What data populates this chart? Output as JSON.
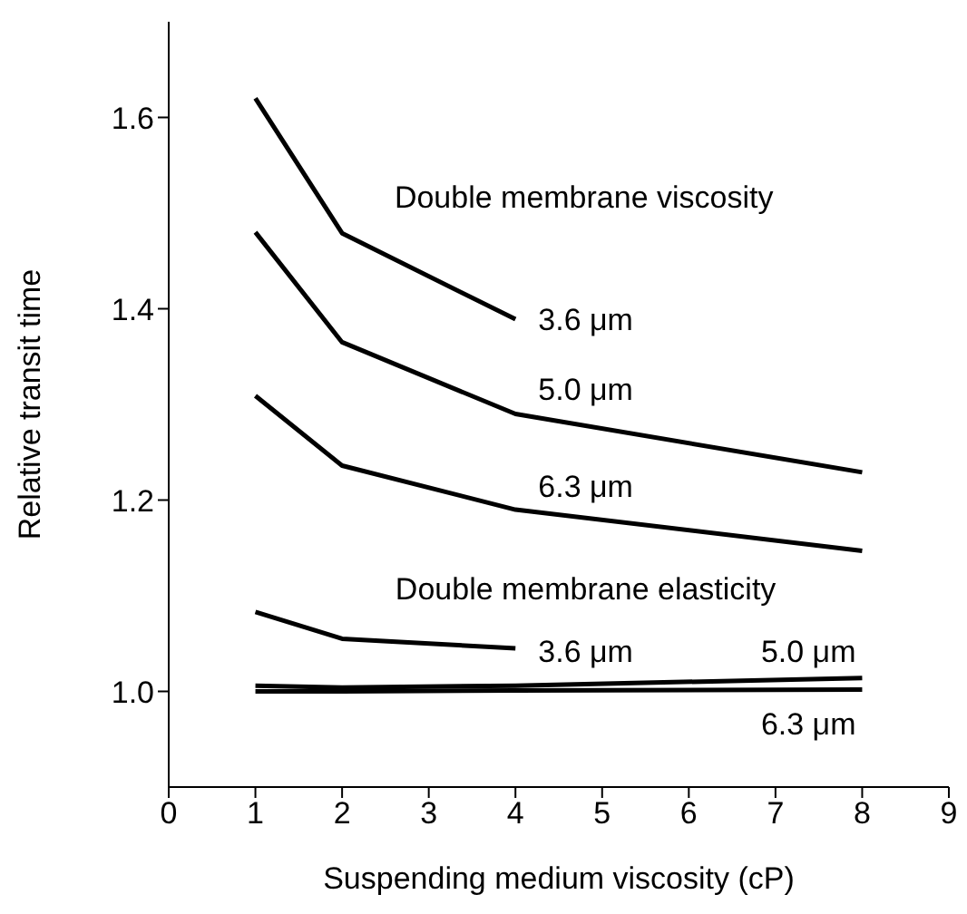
{
  "chart_data": {
    "type": "line",
    "xlabel": "Suspending medium viscosity (cP)",
    "ylabel": "Relative transit time",
    "xlim": [
      0,
      9
    ],
    "xticks": [
      0,
      1,
      2,
      3,
      4,
      5,
      6,
      7,
      8,
      9
    ],
    "ylim": [
      0.9,
      1.7
    ],
    "yticks": [
      {
        "value": 1.0,
        "label": "1.0"
      },
      1.2,
      1.4,
      1.6
    ],
    "series": [
      {
        "name": "3.6 μm",
        "color": "#000000",
        "x": [
          1,
          2,
          4
        ],
        "values": [
          1.62,
          1.479,
          1.389
        ]
      },
      {
        "name": "5.0 μm",
        "color": "#000000",
        "x": [
          1,
          2,
          4,
          8
        ],
        "values": [
          1.48,
          1.365,
          1.29,
          1.229
        ]
      },
      {
        "name": "6.3 μm",
        "color": "#000000",
        "x": [
          1,
          2,
          4,
          8
        ],
        "values": [
          1.309,
          1.236,
          1.19,
          1.147
        ]
      },
      {
        "name": "3.6 μm",
        "color": "#000000",
        "x": [
          1,
          2,
          4
        ],
        "values": [
          1.083,
          1.055,
          1.045
        ]
      },
      {
        "name": "5.0 μm",
        "color": "#000000",
        "x": [
          1,
          2,
          4,
          8
        ],
        "values": [
          1.006,
          1.004,
          1.006,
          1.014
        ]
      },
      {
        "name": "6.3 μm",
        "color": "#000000",
        "x": [
          1,
          2,
          4,
          8
        ],
        "values": [
          1.0,
          1.0,
          1.001,
          1.002
        ]
      }
    ],
    "annotations": [
      "Double membrane viscosity",
      "Double membrane elasticity"
    ],
    "grid": false,
    "legend": false,
    "marker": "none",
    "line_style": "solid"
  }
}
